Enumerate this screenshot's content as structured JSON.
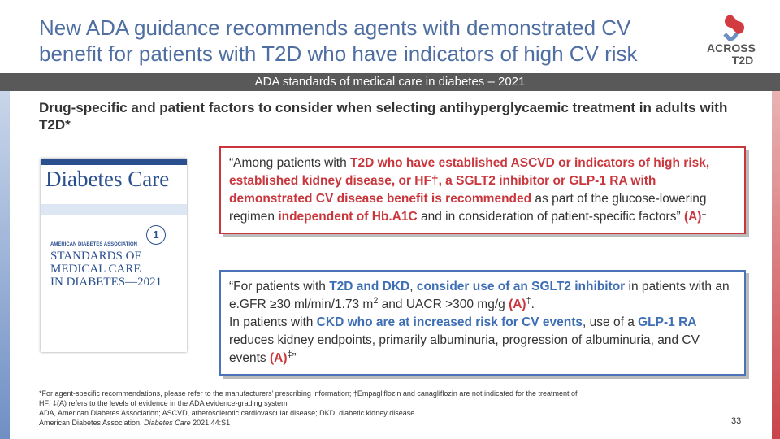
{
  "header": {
    "title_lines": [
      "New ADA guidance recommends agents with demonstrated CV",
      "benefit for patients with T2D who have indicators of high CV risk"
    ]
  },
  "logo": {
    "line1": "ACROSS",
    "line2": "T2D"
  },
  "banner": "ADA standards of medical care in diabetes – 2021",
  "heading": "Drug-specific and patient factors to consider when selecting antihyperglycaemic treatment in adults with T2D*",
  "cover": {
    "journal": "Diabetes Care",
    "number": "1",
    "org": "AMERICAN DIABETES ASSOCIATION",
    "title_lines": [
      "STANDARDS OF",
      "MEDICAL CARE",
      "IN DIABETES—2021"
    ]
  },
  "quote1": {
    "paragraphs": [
      [
        {
          "text": "“Among patients with "
        },
        {
          "text": "T2D who have established ASCVD or indicators of high risk, established kidney disease, or HF†, a SGLT2 inhibitor or GLP-1 RA with demonstrated CV disease benefit is recommended",
          "style": "red"
        },
        {
          "text": " as part of the glucose-lowering regimen "
        },
        {
          "text": "independent of Hb.A1C",
          "style": "red"
        },
        {
          "text": " and in consideration of patient-specific factors” "
        },
        {
          "text": "(A)",
          "style": "red"
        },
        {
          "text": "‡",
          "style": "sup"
        }
      ]
    ]
  },
  "quote2": {
    "paragraphs": [
      [
        {
          "text": "“For patients with "
        },
        {
          "text": "T2D and DKD",
          "style": "blue"
        },
        {
          "text": ", "
        },
        {
          "text": "consider use of an SGLT2 inhibitor",
          "style": "blue"
        },
        {
          "text": " in patients with an e.GFR ≥30 ml/min/1.73 m"
        },
        {
          "text": "2",
          "style": "sup"
        },
        {
          "text": " and UACR >300 mg/g "
        },
        {
          "text": "(A)",
          "style": "red"
        },
        {
          "text": "‡",
          "style": "sup"
        },
        {
          "text": "."
        }
      ],
      [
        {
          "text": "In patients with "
        },
        {
          "text": "CKD who are at increased risk for CV events",
          "style": "blue"
        },
        {
          "text": ", use of a "
        },
        {
          "text": "GLP-1 RA",
          "style": "blue"
        },
        {
          "text": " reduces kidney endpoints, primarily albuminuria, progression of albuminuria, and CV events "
        },
        {
          "text": "(A)",
          "style": "red"
        },
        {
          "text": "‡",
          "style": "sup"
        },
        {
          "text": "”"
        }
      ]
    ]
  },
  "footnotes": {
    "paragraphs": [
      [
        {
          "text": "*For agent-specific recommendations, please refer to the manufacturers’ prescribing information; †Empagliflozin and canagliflozin are not indicated for the treatment of"
        }
      ],
      [
        {
          "text": "HF; ‡(A) refers to the levels of evidence in the ADA evidence-grading system"
        }
      ],
      [
        {
          "text": "ADA, American Diabetes Association; ASCVD, atherosclerotic cardiovascular disease; DKD, diabetic kidney disease"
        }
      ],
      [
        {
          "text": "American Diabetes Association. "
        },
        {
          "text": "Diabetes Care",
          "style": "italic"
        },
        {
          "text": " 2021;44:S1"
        }
      ]
    ]
  },
  "page_number": "33"
}
